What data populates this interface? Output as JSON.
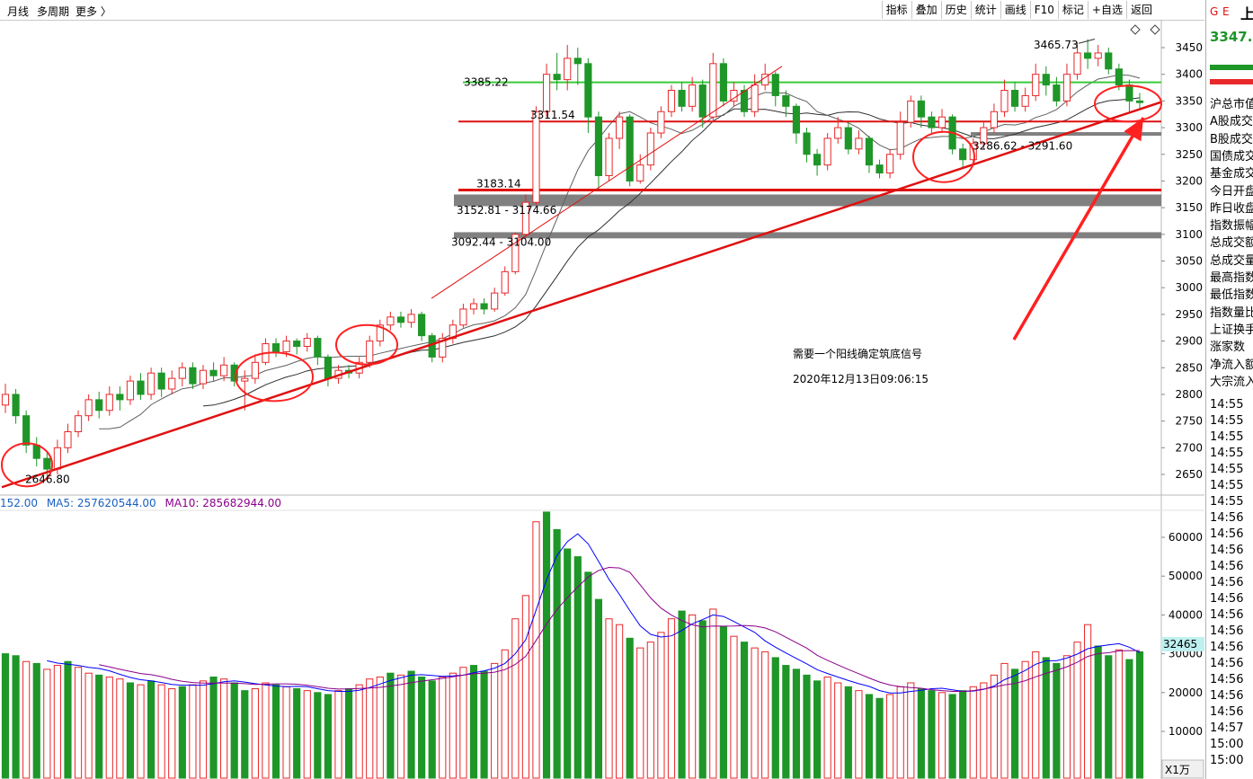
{
  "topbar": {
    "left": [
      "月线",
      "多周期",
      "更多 〉"
    ],
    "buttons": [
      "指标",
      "叠加",
      "历史",
      "统计",
      "画线",
      "F10",
      "标记",
      "+自选",
      "返回"
    ]
  },
  "right_panel": {
    "header_icons": [
      "G",
      "E"
    ],
    "header_code": "上",
    "price": "3347.",
    "labels": [
      "沪总市值",
      "A股成交",
      "B股成交",
      "国债成交",
      "基金成交",
      "今日开盘",
      "昨日收盘",
      "指数振幅",
      "总成交额",
      "总成交量",
      "最高指数",
      "最低指数",
      "指数量比",
      "上证换手",
      "涨家数",
      "净流入额",
      "大宗流入"
    ],
    "times": [
      "14:55",
      "14:55",
      "14:55",
      "14:55",
      "14:55",
      "14:55",
      "14:55",
      "14:56",
      "14:56",
      "14:56",
      "14:56",
      "14:56",
      "14:56",
      "14:56",
      "14:56",
      "14:56",
      "14:56",
      "14:56",
      "14:56",
      "14:56",
      "14:57",
      "15:00",
      "15:00"
    ]
  },
  "volume_header": {
    "vol": "152.00",
    "ma5": "MA5: 257620544.00",
    "ma10": "MA10: 285682944.00"
  },
  "volume_badge": "32465",
  "zoom_label": "X1万",
  "annotation": {
    "line1": "需要一个阳线确定筑底信号",
    "line2": "2020年12月13日09:06:15"
  },
  "colors": {
    "up": "#e8282a",
    "down": "#1e9628",
    "ma_fast": "#0000ff",
    "ma_slow": "#8b008b",
    "annotation": "#ff2020",
    "support_green": "#39c939"
  },
  "chart_data": {
    "type": "candlestick",
    "price_axis": {
      "ylim": [
        2600,
        3480
      ],
      "ticks": [
        2650,
        2700,
        2750,
        2800,
        2850,
        2900,
        2950,
        3000,
        3050,
        3100,
        3150,
        3200,
        3250,
        3300,
        3350,
        3400,
        3450
      ]
    },
    "volume_axis": {
      "unit": "万",
      "ylim": [
        0,
        67000
      ],
      "ticks": [
        10000,
        20000,
        30000,
        40000,
        50000,
        60000
      ]
    },
    "labels": {
      "low": "2646.80",
      "high": "3465.73",
      "level_3311": "3311.54",
      "level_3183": "3183.14",
      "gap_1": "3152.81 - 3174.66",
      "gap_2": "3092.44 - 3104.00",
      "gap_3": "3286.62 - 3291.60",
      "level_top": "3385.22"
    },
    "levels": [
      {
        "name": "green-resistance",
        "value": 3385,
        "color": "#39c939"
      },
      {
        "name": "red-level-3311",
        "value": 3311.54,
        "color": "#e01010"
      },
      {
        "name": "red-level-3183",
        "value": 3183.14,
        "color": "#e01010"
      },
      {
        "name": "gap-3152",
        "low": 3152.81,
        "high": 3174.66
      },
      {
        "name": "gap-3092",
        "low": 3092.44,
        "high": 3104.0
      },
      {
        "name": "gap-3286",
        "low": 3286.62,
        "high": 3291.6
      }
    ],
    "candles": [
      [
        2780,
        2800,
        2820,
        2765
      ],
      [
        2800,
        2760,
        2810,
        2745
      ],
      [
        2760,
        2705,
        2770,
        2690
      ],
      [
        2705,
        2680,
        2720,
        2665
      ],
      [
        2680,
        2660,
        2690,
        2646.8
      ],
      [
        2660,
        2700,
        2715,
        2650
      ],
      [
        2700,
        2730,
        2745,
        2690
      ],
      [
        2730,
        2760,
        2770,
        2720
      ],
      [
        2760,
        2790,
        2800,
        2750
      ],
      [
        2790,
        2770,
        2805,
        2755
      ],
      [
        2770,
        2800,
        2815,
        2760
      ],
      [
        2800,
        2790,
        2815,
        2770
      ],
      [
        2790,
        2825,
        2835,
        2780
      ],
      [
        2825,
        2800,
        2840,
        2790
      ],
      [
        2800,
        2840,
        2850,
        2790
      ],
      [
        2840,
        2810,
        2850,
        2795
      ],
      [
        2810,
        2830,
        2845,
        2800
      ],
      [
        2830,
        2850,
        2860,
        2815
      ],
      [
        2850,
        2820,
        2860,
        2810
      ],
      [
        2820,
        2845,
        2855,
        2810
      ],
      [
        2845,
        2835,
        2860,
        2825
      ],
      [
        2835,
        2855,
        2870,
        2825
      ],
      [
        2855,
        2825,
        2860,
        2815
      ],
      [
        2825,
        2830,
        2845,
        2770
      ],
      [
        2830,
        2860,
        2875,
        2820
      ],
      [
        2860,
        2895,
        2905,
        2855
      ],
      [
        2895,
        2880,
        2905,
        2870
      ],
      [
        2880,
        2900,
        2910,
        2870
      ],
      [
        2900,
        2890,
        2905,
        2875
      ],
      [
        2890,
        2905,
        2915,
        2880
      ],
      [
        2905,
        2870,
        2910,
        2855
      ],
      [
        2870,
        2830,
        2875,
        2815
      ],
      [
        2830,
        2845,
        2855,
        2820
      ],
      [
        2845,
        2840,
        2855,
        2830
      ],
      [
        2840,
        2860,
        2870,
        2830
      ],
      [
        2860,
        2900,
        2910,
        2850
      ],
      [
        2900,
        2930,
        2940,
        2890
      ],
      [
        2930,
        2945,
        2955,
        2920
      ],
      [
        2945,
        2935,
        2955,
        2925
      ],
      [
        2935,
        2950,
        2960,
        2925
      ],
      [
        2950,
        2910,
        2955,
        2900
      ],
      [
        2910,
        2870,
        2915,
        2860
      ],
      [
        2870,
        2905,
        2915,
        2860
      ],
      [
        2905,
        2930,
        2940,
        2895
      ],
      [
        2930,
        2960,
        2970,
        2925
      ],
      [
        2960,
        2970,
        2980,
        2950
      ],
      [
        2970,
        2960,
        2980,
        2950
      ],
      [
        2960,
        2990,
        3000,
        2955
      ],
      [
        2990,
        3030,
        3040,
        2985
      ],
      [
        3030,
        3100,
        3104,
        3025
      ],
      [
        3100,
        3160,
        3175,
        3095
      ],
      [
        3160,
        3330,
        3340,
        3155
      ],
      [
        3330,
        3400,
        3420,
        3320
      ],
      [
        3400,
        3390,
        3440,
        3370
      ],
      [
        3390,
        3430,
        3455,
        3370
      ],
      [
        3430,
        3420,
        3450,
        3380
      ],
      [
        3420,
        3320,
        3430,
        3290
      ],
      [
        3320,
        3210,
        3330,
        3185
      ],
      [
        3210,
        3280,
        3290,
        3200
      ],
      [
        3280,
        3320,
        3330,
        3260
      ],
      [
        3320,
        3200,
        3325,
        3190
      ],
      [
        3200,
        3230,
        3250,
        3195
      ],
      [
        3230,
        3290,
        3300,
        3220
      ],
      [
        3290,
        3330,
        3340,
        3280
      ],
      [
        3330,
        3370,
        3380,
        3320
      ],
      [
        3370,
        3340,
        3385,
        3330
      ],
      [
        3340,
        3380,
        3395,
        3330
      ],
      [
        3380,
        3320,
        3390,
        3300
      ],
      [
        3320,
        3420,
        3440,
        3310
      ],
      [
        3420,
        3350,
        3430,
        3340
      ],
      [
        3350,
        3370,
        3385,
        3340
      ],
      [
        3370,
        3330,
        3380,
        3320
      ],
      [
        3330,
        3380,
        3400,
        3320
      ],
      [
        3380,
        3400,
        3420,
        3370
      ],
      [
        3400,
        3360,
        3405,
        3340
      ],
      [
        3360,
        3340,
        3370,
        3320
      ],
      [
        3340,
        3290,
        3345,
        3270
      ],
      [
        3290,
        3250,
        3300,
        3235
      ],
      [
        3250,
        3230,
        3260,
        3210
      ],
      [
        3230,
        3280,
        3290,
        3220
      ],
      [
        3280,
        3300,
        3320,
        3270
      ],
      [
        3300,
        3260,
        3310,
        3250
      ],
      [
        3260,
        3280,
        3295,
        3250
      ],
      [
        3280,
        3230,
        3285,
        3215
      ],
      [
        3230,
        3215,
        3240,
        3205
      ],
      [
        3215,
        3250,
        3260,
        3205
      ],
      [
        3250,
        3310,
        3330,
        3240
      ],
      [
        3310,
        3350,
        3360,
        3300
      ],
      [
        3350,
        3320,
        3360,
        3300
      ],
      [
        3320,
        3300,
        3330,
        3290
      ],
      [
        3300,
        3320,
        3335,
        3290
      ],
      [
        3320,
        3260,
        3325,
        3250
      ],
      [
        3260,
        3240,
        3270,
        3225
      ],
      [
        3240,
        3270,
        3280,
        3230
      ],
      [
        3270,
        3300,
        3310,
        3260
      ],
      [
        3300,
        3330,
        3345,
        3290
      ],
      [
        3330,
        3370,
        3390,
        3320
      ],
      [
        3370,
        3340,
        3385,
        3330
      ],
      [
        3340,
        3360,
        3375,
        3330
      ],
      [
        3360,
        3400,
        3420,
        3350
      ],
      [
        3400,
        3380,
        3415,
        3360
      ],
      [
        3380,
        3350,
        3395,
        3340
      ],
      [
        3350,
        3400,
        3420,
        3340
      ],
      [
        3400,
        3440,
        3460,
        3390
      ],
      [
        3440,
        3430,
        3465.73,
        3410
      ],
      [
        3430,
        3440,
        3455,
        3415
      ],
      [
        3440,
        3410,
        3450,
        3400
      ],
      [
        3410,
        3380,
        3420,
        3370
      ],
      [
        3380,
        3350,
        3390,
        3330
      ],
      [
        3350,
        3347,
        3365,
        3335
      ]
    ],
    "volumes": [
      [
        30000,
        "d"
      ],
      [
        29500,
        "d"
      ],
      [
        28000,
        "u"
      ],
      [
        27500,
        "d"
      ],
      [
        26000,
        "u"
      ],
      [
        27000,
        "u"
      ],
      [
        28000,
        "d"
      ],
      [
        26500,
        "u"
      ],
      [
        25000,
        "u"
      ],
      [
        24500,
        "d"
      ],
      [
        24000,
        "u"
      ],
      [
        23500,
        "u"
      ],
      [
        22500,
        "d"
      ],
      [
        22000,
        "u"
      ],
      [
        23000,
        "d"
      ],
      [
        22000,
        "u"
      ],
      [
        21000,
        "u"
      ],
      [
        21500,
        "d"
      ],
      [
        22000,
        "u"
      ],
      [
        23000,
        "u"
      ],
      [
        24000,
        "d"
      ],
      [
        23500,
        "u"
      ],
      [
        22500,
        "d"
      ],
      [
        20500,
        "d"
      ],
      [
        21000,
        "u"
      ],
      [
        22500,
        "u"
      ],
      [
        22000,
        "d"
      ],
      [
        21500,
        "u"
      ],
      [
        21000,
        "d"
      ],
      [
        20500,
        "u"
      ],
      [
        20000,
        "d"
      ],
      [
        19500,
        "d"
      ],
      [
        20500,
        "u"
      ],
      [
        21000,
        "d"
      ],
      [
        22000,
        "u"
      ],
      [
        23500,
        "u"
      ],
      [
        24000,
        "u"
      ],
      [
        25000,
        "d"
      ],
      [
        24500,
        "u"
      ],
      [
        25500,
        "d"
      ],
      [
        24000,
        "d"
      ],
      [
        23000,
        "d"
      ],
      [
        24000,
        "u"
      ],
      [
        25000,
        "u"
      ],
      [
        26500,
        "u"
      ],
      [
        27000,
        "d"
      ],
      [
        25500,
        "d"
      ],
      [
        27500,
        "u"
      ],
      [
        31000,
        "u"
      ],
      [
        39000,
        "u"
      ],
      [
        45000,
        "u"
      ],
      [
        64000,
        "u"
      ],
      [
        66500,
        "d"
      ],
      [
        62000,
        "d"
      ],
      [
        57000,
        "d"
      ],
      [
        55000,
        "d"
      ],
      [
        51000,
        "d"
      ],
      [
        44000,
        "d"
      ],
      [
        39000,
        "u"
      ],
      [
        37500,
        "u"
      ],
      [
        34000,
        "d"
      ],
      [
        31500,
        "u"
      ],
      [
        33000,
        "u"
      ],
      [
        35500,
        "u"
      ],
      [
        39000,
        "u"
      ],
      [
        41000,
        "d"
      ],
      [
        40000,
        "u"
      ],
      [
        38500,
        "d"
      ],
      [
        41500,
        "u"
      ],
      [
        37000,
        "d"
      ],
      [
        34500,
        "u"
      ],
      [
        33000,
        "d"
      ],
      [
        31500,
        "u"
      ],
      [
        30500,
        "u"
      ],
      [
        29000,
        "d"
      ],
      [
        27000,
        "d"
      ],
      [
        26000,
        "d"
      ],
      [
        24500,
        "d"
      ],
      [
        23000,
        "d"
      ],
      [
        24000,
        "u"
      ],
      [
        22500,
        "u"
      ],
      [
        21500,
        "d"
      ],
      [
        20500,
        "u"
      ],
      [
        19500,
        "d"
      ],
      [
        18500,
        "d"
      ],
      [
        19500,
        "u"
      ],
      [
        21500,
        "u"
      ],
      [
        22500,
        "u"
      ],
      [
        21000,
        "d"
      ],
      [
        20500,
        "d"
      ],
      [
        20000,
        "u"
      ],
      [
        19500,
        "d"
      ],
      [
        20500,
        "d"
      ],
      [
        21500,
        "u"
      ],
      [
        22500,
        "u"
      ],
      [
        24500,
        "u"
      ],
      [
        27500,
        "u"
      ],
      [
        26000,
        "d"
      ],
      [
        28000,
        "u"
      ],
      [
        30500,
        "u"
      ],
      [
        29000,
        "d"
      ],
      [
        27500,
        "d"
      ],
      [
        29500,
        "u"
      ],
      [
        33000,
        "u"
      ],
      [
        37500,
        "u"
      ],
      [
        32000,
        "d"
      ],
      [
        29500,
        "d"
      ],
      [
        31000,
        "u"
      ],
      [
        28500,
        "d"
      ],
      [
        30500,
        "d"
      ]
    ]
  }
}
